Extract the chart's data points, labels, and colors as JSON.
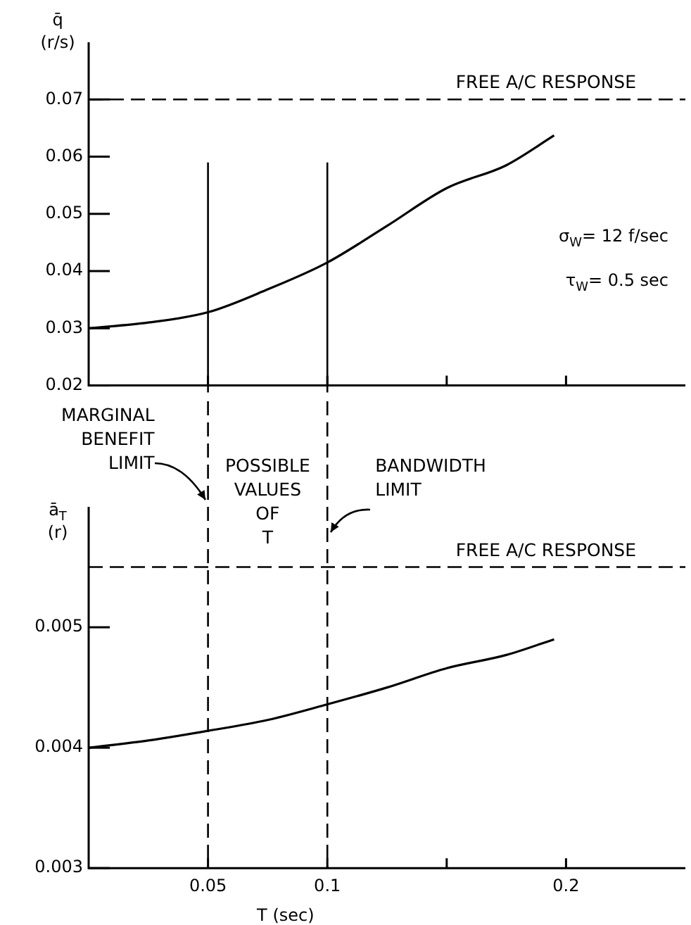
{
  "chart_data": [
    {
      "type": "line",
      "ylabel": "q̄ (r/s)",
      "x": [
        0,
        0.025,
        0.05,
        0.075,
        0.1,
        0.125,
        0.15,
        0.175,
        0.195
      ],
      "series": [
        {
          "color": "#000000",
          "values": [
            0.03,
            0.031,
            0.0328,
            0.0368,
            0.0415,
            0.0479,
            0.0545,
            0.0585,
            0.0637
          ]
        }
      ],
      "xlim": [
        0,
        0.25
      ],
      "xticks": [
        {
          "value": 0.05,
          "label": null
        },
        {
          "value": 0.1,
          "label": null
        },
        {
          "value": 0.15,
          "label": null
        },
        {
          "value": 0.2,
          "label": null
        }
      ],
      "ylim": [
        0.02,
        0.08
      ],
      "yticks": [
        0.02,
        0.03,
        0.04,
        0.05,
        0.06,
        0.07
      ],
      "tick_labels": "y",
      "marker": "none",
      "line_style": "solid",
      "grid": false,
      "legend": false,
      "ref_lines": [
        {
          "axis": "y",
          "value": 0.07,
          "label": "FREE A/C RESPONSE",
          "line_style": "dashed"
        },
        {
          "axis": "x",
          "value": 0.05,
          "label": null,
          "line_style": "solid"
        },
        {
          "axis": "x",
          "value": 0.1,
          "label": null,
          "line_style": "solid"
        }
      ],
      "annotations": [
        "σ$_{W}$= 12 f/sec",
        "τ$_{W}$= 0.5 sec"
      ]
    },
    {
      "type": "line",
      "ylabel": "ā$_{T}$ (r)",
      "xlabel": "T (sec)",
      "x": [
        0,
        0.025,
        0.05,
        0.075,
        0.1,
        0.125,
        0.15,
        0.175,
        0.195
      ],
      "series": [
        {
          "color": "#000000",
          "values": [
            0.004,
            0.00406,
            0.00414,
            0.00423,
            0.00436,
            0.0045,
            0.00466,
            0.00477,
            0.0049
          ]
        }
      ],
      "xlim": [
        0,
        0.25
      ],
      "xticks": [
        {
          "value": 0.05,
          "label": "0.05"
        },
        {
          "value": 0.1,
          "label": "0.1"
        },
        {
          "value": 0.15,
          "label": null
        },
        {
          "value": 0.2,
          "label": "0.2"
        }
      ],
      "ylim": [
        0.003,
        0.006
      ],
      "yticks": [
        0.003,
        0.004,
        0.005
      ],
      "marker": "none",
      "line_style": "solid",
      "grid": false,
      "legend": false,
      "ref_lines": [
        {
          "axis": "y",
          "value": 0.0055,
          "label": "FREE A/C RESPONSE",
          "line_style": "dashed"
        },
        {
          "axis": "x",
          "value": 0.05,
          "label": null,
          "line_style": "dashed"
        },
        {
          "axis": "x",
          "value": 0.1,
          "label": null,
          "line_style": "dashed"
        }
      ],
      "annotations": [
        "MARGINAL BENEFIT LIMIT",
        "POSSIBLE VALUES OF T",
        "BANDWIDTH LIMIT"
      ]
    }
  ]
}
